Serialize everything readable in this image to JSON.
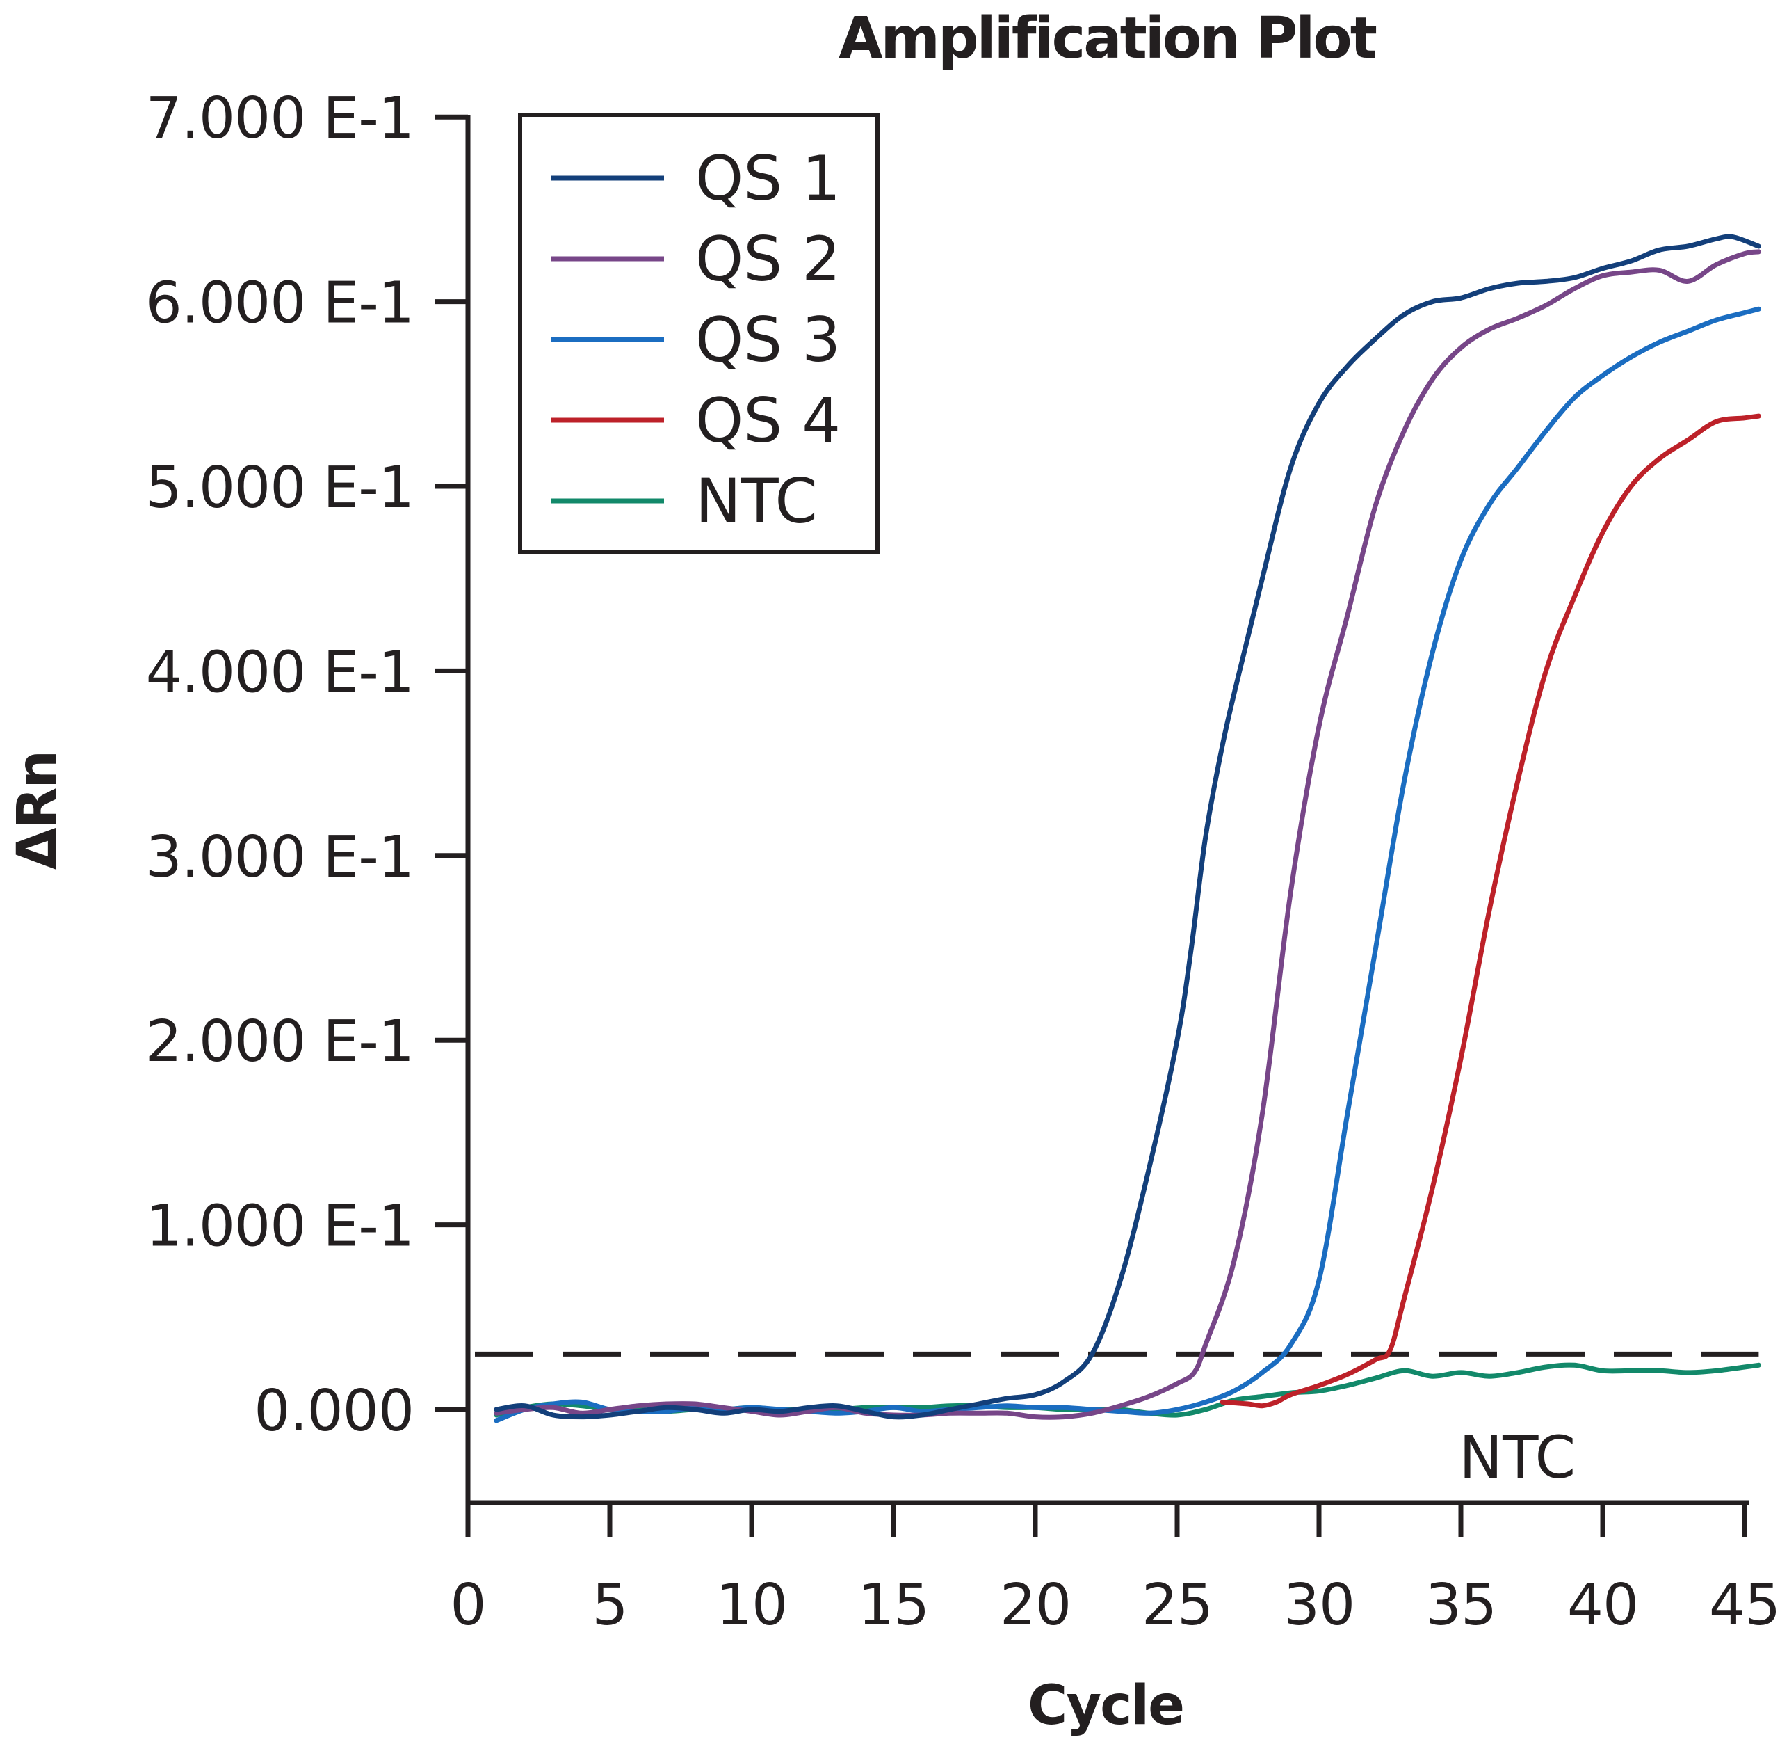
{
  "chart_data": {
    "type": "line",
    "title": "Amplification Plot",
    "xlabel": "Cycle",
    "ylabel": "ΔRn",
    "xlim": [
      0,
      45
    ],
    "ylim": [
      -0.05,
      0.7
    ],
    "x_ticks": [
      0,
      5,
      10,
      15,
      20,
      25,
      30,
      35,
      40,
      45
    ],
    "x_tick_labels": [
      "0",
      "5",
      "10",
      "15",
      "20",
      "25",
      "30",
      "35",
      "40",
      "45"
    ],
    "y_ticks": [
      0,
      0.1,
      0.2,
      0.3,
      0.4,
      0.5,
      0.6,
      0.7
    ],
    "y_tick_labels": [
      "0.000",
      "1.000 E-1",
      "2.000 E-1",
      "3.000 E-1",
      "4.000 E-1",
      "5.000 E-1",
      "6.000 E-1",
      "7.000 E-1"
    ],
    "grid": false,
    "legend_position": "top-left",
    "threshold": {
      "value": 0.03,
      "style": "dashed",
      "color": "#231f20"
    },
    "annotations": [
      {
        "text": "NTC",
        "x": 36.5,
        "y": -0.006
      }
    ],
    "series": [
      {
        "name": "QS 1",
        "color": "#133f7a",
        "points": [
          [
            1,
            0.0
          ],
          [
            2,
            0.002
          ],
          [
            3,
            -0.003
          ],
          [
            4,
            -0.004
          ],
          [
            5,
            -0.003
          ],
          [
            6,
            -0.001
          ],
          [
            7,
            0.001
          ],
          [
            8,
            0.0
          ],
          [
            9,
            -0.002
          ],
          [
            10,
            0.0
          ],
          [
            11,
            -0.001
          ],
          [
            12,
            0.001
          ],
          [
            13,
            0.002
          ],
          [
            14,
            -0.001
          ],
          [
            15,
            -0.004
          ],
          [
            16,
            -0.003
          ],
          [
            17,
            0.0
          ],
          [
            18,
            0.003
          ],
          [
            19,
            0.006
          ],
          [
            20,
            0.008
          ],
          [
            21,
            0.015
          ],
          [
            22,
            0.03
          ],
          [
            23,
            0.07
          ],
          [
            24,
            0.13
          ],
          [
            25,
            0.2
          ],
          [
            25.5,
            0.25
          ],
          [
            26,
            0.31
          ],
          [
            26.6,
            0.36
          ],
          [
            27.2,
            0.4
          ],
          [
            28,
            0.45
          ],
          [
            29,
            0.51
          ],
          [
            30,
            0.545
          ],
          [
            31,
            0.565
          ],
          [
            32,
            0.58
          ],
          [
            33,
            0.593
          ],
          [
            34,
            0.6
          ],
          [
            35,
            0.602
          ],
          [
            36,
            0.607
          ],
          [
            37,
            0.61
          ],
          [
            38,
            0.611
          ],
          [
            39,
            0.613
          ],
          [
            40,
            0.618
          ],
          [
            41,
            0.622
          ],
          [
            42,
            0.628
          ],
          [
            43,
            0.63
          ],
          [
            44,
            0.634
          ],
          [
            44.6,
            0.635
          ],
          [
            45.5,
            0.63
          ]
        ]
      },
      {
        "name": "QS 2",
        "color": "#774688",
        "points": [
          [
            1,
            -0.002
          ],
          [
            2,
            0.0
          ],
          [
            3,
            0.001
          ],
          [
            4,
            -0.002
          ],
          [
            5,
            0.0
          ],
          [
            6,
            0.002
          ],
          [
            7,
            0.003
          ],
          [
            8,
            0.003
          ],
          [
            9,
            0.001
          ],
          [
            10,
            -0.001
          ],
          [
            11,
            -0.003
          ],
          [
            12,
            -0.001
          ],
          [
            13,
            0.001
          ],
          [
            14,
            -0.002
          ],
          [
            15,
            -0.003
          ],
          [
            16,
            -0.003
          ],
          [
            17,
            -0.002
          ],
          [
            18,
            -0.002
          ],
          [
            19,
            -0.002
          ],
          [
            20,
            -0.004
          ],
          [
            21,
            -0.004
          ],
          [
            22,
            -0.002
          ],
          [
            23,
            0.002
          ],
          [
            24,
            0.007
          ],
          [
            25,
            0.014
          ],
          [
            25.6,
            0.02
          ],
          [
            26,
            0.035
          ],
          [
            27,
            0.08
          ],
          [
            28,
            0.16
          ],
          [
            29,
            0.28
          ],
          [
            30,
            0.37
          ],
          [
            31,
            0.43
          ],
          [
            32,
            0.49
          ],
          [
            33,
            0.53
          ],
          [
            34,
            0.558
          ],
          [
            35,
            0.575
          ],
          [
            36,
            0.585
          ],
          [
            37,
            0.591
          ],
          [
            38,
            0.598
          ],
          [
            39,
            0.607
          ],
          [
            40,
            0.614
          ],
          [
            41,
            0.616
          ],
          [
            42,
            0.617
          ],
          [
            43,
            0.611
          ],
          [
            44,
            0.62
          ],
          [
            45,
            0.626
          ],
          [
            45.5,
            0.627
          ]
        ]
      },
      {
        "name": "QS 3",
        "color": "#1b6dc1",
        "points": [
          [
            1,
            -0.006
          ],
          [
            2,
            0.0
          ],
          [
            3,
            0.003
          ],
          [
            4,
            0.004
          ],
          [
            5,
            0.0
          ],
          [
            6,
            -0.001
          ],
          [
            7,
            -0.001
          ],
          [
            8,
            0.001
          ],
          [
            9,
            0.0
          ],
          [
            10,
            0.001
          ],
          [
            11,
            0.0
          ],
          [
            12,
            -0.001
          ],
          [
            13,
            -0.002
          ],
          [
            14,
            -0.001
          ],
          [
            15,
            0.001
          ],
          [
            16,
            -0.001
          ],
          [
            17,
            0.0
          ],
          [
            18,
            0.001
          ],
          [
            19,
            0.002
          ],
          [
            20,
            0.001
          ],
          [
            21,
            0.001
          ],
          [
            22,
            0.0
          ],
          [
            23,
            -0.001
          ],
          [
            24,
            -0.002
          ],
          [
            25,
            0.0
          ],
          [
            26,
            0.004
          ],
          [
            27,
            0.01
          ],
          [
            28,
            0.02
          ],
          [
            29,
            0.035
          ],
          [
            30,
            0.07
          ],
          [
            31,
            0.16
          ],
          [
            32,
            0.25
          ],
          [
            33,
            0.34
          ],
          [
            34,
            0.41
          ],
          [
            35,
            0.46
          ],
          [
            36,
            0.49
          ],
          [
            37,
            0.51
          ],
          [
            38,
            0.53
          ],
          [
            39,
            0.548
          ],
          [
            40,
            0.56
          ],
          [
            41,
            0.57
          ],
          [
            42,
            0.578
          ],
          [
            43,
            0.584
          ],
          [
            44,
            0.59
          ],
          [
            45,
            0.594
          ],
          [
            45.5,
            0.596
          ]
        ]
      },
      {
        "name": "QS 4",
        "color": "#bd2129",
        "points": [
          [
            26.6,
            0.004
          ],
          [
            27.5,
            0.003
          ],
          [
            28,
            0.002
          ],
          [
            28.5,
            0.004
          ],
          [
            29,
            0.008
          ],
          [
            30,
            0.013
          ],
          [
            31,
            0.019
          ],
          [
            32,
            0.027
          ],
          [
            32.5,
            0.032
          ],
          [
            33,
            0.06
          ],
          [
            34,
            0.12
          ],
          [
            35,
            0.19
          ],
          [
            36,
            0.27
          ],
          [
            37,
            0.34
          ],
          [
            38,
            0.4
          ],
          [
            39,
            0.44
          ],
          [
            40,
            0.475
          ],
          [
            41,
            0.5
          ],
          [
            42,
            0.515
          ],
          [
            43,
            0.525
          ],
          [
            44,
            0.535
          ],
          [
            45,
            0.537
          ],
          [
            45.5,
            0.538
          ]
        ]
      },
      {
        "name": "NTC",
        "color": "#12896a",
        "points": [
          [
            1,
            -0.003
          ],
          [
            2,
            0.001
          ],
          [
            3,
            0.003
          ],
          [
            4,
            0.002
          ],
          [
            5,
            0.0
          ],
          [
            6,
            0.0
          ],
          [
            7,
            -0.001
          ],
          [
            8,
            0.0
          ],
          [
            9,
            0.0
          ],
          [
            10,
            0.001
          ],
          [
            11,
            0.0
          ],
          [
            12,
            0.0
          ],
          [
            13,
            0.0
          ],
          [
            14,
            0.001
          ],
          [
            15,
            0.001
          ],
          [
            16,
            0.001
          ],
          [
            17,
            0.002
          ],
          [
            18,
            0.002
          ],
          [
            19,
            0.001
          ],
          [
            20,
            0.001
          ],
          [
            21,
            0.0
          ],
          [
            22,
            0.0
          ],
          [
            23,
            0.0
          ],
          [
            24,
            -0.002
          ],
          [
            25,
            -0.003
          ],
          [
            26,
            0.0
          ],
          [
            27,
            0.005
          ],
          [
            28,
            0.007
          ],
          [
            29,
            0.009
          ],
          [
            30,
            0.01
          ],
          [
            31,
            0.013
          ],
          [
            32,
            0.017
          ],
          [
            33,
            0.021
          ],
          [
            34,
            0.018
          ],
          [
            35,
            0.02
          ],
          [
            36,
            0.018
          ],
          [
            37,
            0.02
          ],
          [
            38,
            0.023
          ],
          [
            39,
            0.024
          ],
          [
            40,
            0.021
          ],
          [
            41,
            0.021
          ],
          [
            42,
            0.021
          ],
          [
            43,
            0.02
          ],
          [
            44,
            0.021
          ],
          [
            45,
            0.023
          ],
          [
            45.5,
            0.024
          ]
        ]
      }
    ]
  }
}
